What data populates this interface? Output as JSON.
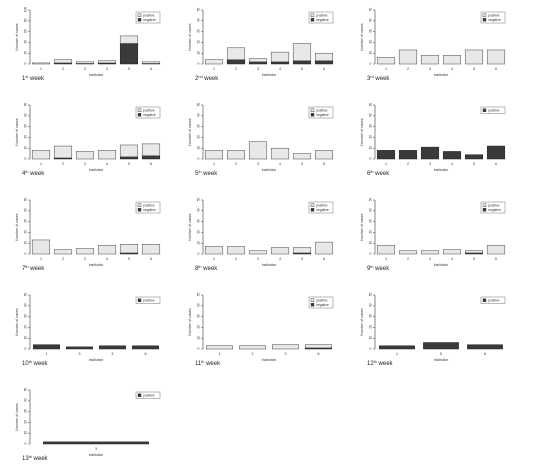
{
  "colors": {
    "positive": "#e8e8e8",
    "negative": "#3a3a3a",
    "axis": "#555555",
    "text": "#333333"
  },
  "chart_data": [
    {
      "type": "bar",
      "stacked": true,
      "panel_label": {
        "ordinal": "1",
        "suffix": "st",
        "word": "week"
      },
      "categories": [
        "1",
        "2",
        "3",
        "4",
        "5",
        "6"
      ],
      "ylabel": "Number of cases",
      "xlabel": "Institution",
      "ylim": [
        0,
        100
      ],
      "yticks": [
        "0",
        "20",
        "40",
        "60",
        "80",
        "100"
      ],
      "series": [
        {
          "name": "positive",
          "values": [
            2,
            6,
            3,
            4,
            14,
            3
          ]
        },
        {
          "name": "negative",
          "values": [
            0,
            2,
            1,
            2,
            38,
            1
          ]
        }
      ],
      "legend": [
        "positive",
        "negative"
      ],
      "legend_position": "top-right"
    },
    {
      "type": "bar",
      "stacked": true,
      "panel_label": {
        "ordinal": "2",
        "suffix": "nd",
        "word": "week"
      },
      "categories": [
        "1",
        "2",
        "3",
        "4",
        "5",
        "6"
      ],
      "ylabel": "Number of cases",
      "xlabel": "Institution",
      "ylim": [
        0,
        50
      ],
      "yticks": [
        "0",
        "10",
        "20",
        "30",
        "40",
        "50"
      ],
      "series": [
        {
          "name": "positive",
          "values": [
            4,
            11,
            3,
            9,
            16,
            7
          ]
        },
        {
          "name": "negative",
          "values": [
            0,
            4,
            2,
            2,
            3,
            3
          ]
        }
      ],
      "legend": [
        "positive",
        "negative"
      ],
      "legend_position": "top-right"
    },
    {
      "type": "bar",
      "stacked": true,
      "panel_label": {
        "ordinal": "3",
        "suffix": "rd",
        "word": "week"
      },
      "categories": [
        "1",
        "2",
        "3",
        "4",
        "5",
        "6"
      ],
      "ylabel": "Number of cases",
      "xlabel": "Institution",
      "ylim": [
        0,
        50
      ],
      "yticks": [
        "0",
        "10",
        "20",
        "30",
        "40",
        "50"
      ],
      "series": [
        {
          "name": "positive",
          "values": [
            6,
            13,
            8,
            8,
            13,
            13
          ]
        },
        {
          "name": "negative",
          "values": [
            0,
            0,
            0,
            0,
            0,
            0
          ]
        }
      ],
      "legend": [
        "positive",
        "negative"
      ],
      "legend_position": "top-right"
    },
    {
      "type": "bar",
      "stacked": true,
      "panel_label": {
        "ordinal": "4",
        "suffix": "th",
        "word": "week"
      },
      "categories": [
        "1",
        "2",
        "3",
        "4",
        "5",
        "6"
      ],
      "ylabel": "Number of cases",
      "xlabel": "Institution",
      "ylim": [
        0,
        50
      ],
      "yticks": [
        "0",
        "10",
        "20",
        "30",
        "40",
        "50"
      ],
      "series": [
        {
          "name": "positive",
          "values": [
            8,
            11,
            7,
            8,
            11,
            11
          ]
        },
        {
          "name": "negative",
          "values": [
            0,
            1,
            0,
            0,
            2,
            3
          ]
        }
      ],
      "legend": [
        "positive",
        "negative"
      ],
      "legend_position": "top-right"
    },
    {
      "type": "bar",
      "stacked": true,
      "panel_label": {
        "ordinal": "5",
        "suffix": "th",
        "word": "week"
      },
      "categories": [
        "1",
        "2",
        "3",
        "4",
        "5",
        "6"
      ],
      "ylabel": "Number of cases",
      "xlabel": "Institution",
      "ylim": [
        0,
        50
      ],
      "yticks": [
        "0",
        "10",
        "20",
        "30",
        "40",
        "50"
      ],
      "series": [
        {
          "name": "positive",
          "values": [
            8,
            8,
            16,
            10,
            5,
            8
          ]
        },
        {
          "name": "negative",
          "values": [
            0,
            0,
            0,
            0,
            0,
            0
          ]
        }
      ],
      "legend": [
        "positive",
        "negative"
      ],
      "legend_position": "top-right"
    },
    {
      "type": "bar",
      "stacked": true,
      "panel_label": {
        "ordinal": "6",
        "suffix": "th",
        "word": "week"
      },
      "categories": [
        "1",
        "2",
        "3",
        "4",
        "5",
        "6"
      ],
      "ylabel": "Number of cases",
      "xlabel": "Institution",
      "ylim": [
        0,
        50
      ],
      "yticks": [
        "0",
        "10",
        "20",
        "30",
        "40",
        "50"
      ],
      "series": [
        {
          "name": "positive",
          "values": [
            0,
            0,
            0,
            0,
            0,
            0
          ]
        },
        {
          "name": "negative",
          "values": [
            8,
            8,
            11,
            7,
            4,
            12
          ]
        }
      ],
      "legend": [
        "positive"
      ],
      "legend_swatch": "negative",
      "legend_position": "top-right"
    },
    {
      "type": "bar",
      "stacked": true,
      "panel_label": {
        "ordinal": "7",
        "suffix": "th",
        "word": "week"
      },
      "categories": [
        "1",
        "2",
        "3",
        "4",
        "5",
        "6"
      ],
      "ylabel": "Number of cases",
      "xlabel": "Institution",
      "ylim": [
        0,
        50
      ],
      "yticks": [
        "0",
        "10",
        "20",
        "30",
        "40",
        "50"
      ],
      "series": [
        {
          "name": "positive",
          "values": [
            13,
            4,
            5,
            8,
            8,
            9
          ]
        },
        {
          "name": "negative",
          "values": [
            0,
            0,
            0,
            0,
            1,
            0
          ]
        }
      ],
      "legend": [
        "positive",
        "negative"
      ],
      "legend_position": "top-right"
    },
    {
      "type": "bar",
      "stacked": true,
      "panel_label": {
        "ordinal": "8",
        "suffix": "th",
        "word": "week"
      },
      "categories": [
        "1",
        "2",
        "3",
        "4",
        "5",
        "6"
      ],
      "ylabel": "Number of cases",
      "xlabel": "Institution",
      "ylim": [
        0,
        50
      ],
      "yticks": [
        "0",
        "10",
        "20",
        "30",
        "40",
        "50"
      ],
      "series": [
        {
          "name": "positive",
          "values": [
            7,
            7,
            3,
            6,
            5,
            11
          ]
        },
        {
          "name": "negative",
          "values": [
            0,
            0,
            0,
            0,
            1,
            0
          ]
        }
      ],
      "legend": [
        "positive",
        "negative"
      ],
      "legend_position": "top-right"
    },
    {
      "type": "bar",
      "stacked": true,
      "panel_label": {
        "ordinal": "9",
        "suffix": "th",
        "word": "week"
      },
      "categories": [
        "1",
        "2",
        "3",
        "4",
        "5",
        "6"
      ],
      "ylabel": "Number of cases",
      "xlabel": "Institution",
      "ylim": [
        0,
        50
      ],
      "yticks": [
        "0",
        "10",
        "20",
        "30",
        "40",
        "50"
      ],
      "series": [
        {
          "name": "positive",
          "values": [
            8,
            3,
            3,
            4,
            2,
            8
          ]
        },
        {
          "name": "negative",
          "values": [
            0,
            0,
            0,
            0,
            1,
            0
          ]
        }
      ],
      "legend": [
        "positive",
        "negative"
      ],
      "legend_position": "top-right"
    },
    {
      "type": "bar",
      "stacked": true,
      "panel_label": {
        "ordinal": "10",
        "suffix": "th",
        "word": "week"
      },
      "categories": [
        "1",
        "3",
        "5",
        "6"
      ],
      "ylabel": "Number of cases",
      "xlabel": "Institution",
      "ylim": [
        0,
        50
      ],
      "yticks": [
        "0",
        "10",
        "20",
        "30",
        "40",
        "50"
      ],
      "series": [
        {
          "name": "positive",
          "values": [
            0,
            0,
            0,
            0
          ]
        },
        {
          "name": "negative",
          "values": [
            4,
            2,
            3,
            3
          ]
        }
      ],
      "legend": [
        "positive"
      ],
      "legend_swatch": "negative",
      "legend_position": "top-right"
    },
    {
      "type": "bar",
      "stacked": true,
      "panel_label": {
        "ordinal": "11",
        "suffix": "th",
        "word": "week"
      },
      "categories": [
        "1",
        "2",
        "3",
        "6"
      ],
      "ylabel": "Number of cases",
      "xlabel": "Institution",
      "ylim": [
        0,
        50
      ],
      "yticks": [
        "0",
        "10",
        "20",
        "30",
        "40",
        "50"
      ],
      "series": [
        {
          "name": "positive",
          "values": [
            3,
            3,
            4,
            3
          ]
        },
        {
          "name": "negative",
          "values": [
            0,
            0,
            0,
            1
          ]
        }
      ],
      "legend": [
        "positive",
        "negative"
      ],
      "legend_position": "top-right"
    },
    {
      "type": "bar",
      "stacked": true,
      "panel_label": {
        "ordinal": "12",
        "suffix": "th",
        "word": "week"
      },
      "categories": [
        "1",
        "5",
        "6"
      ],
      "ylabel": "Number of cases",
      "xlabel": "Institution",
      "ylim": [
        0,
        50
      ],
      "yticks": [
        "0",
        "10",
        "20",
        "30",
        "40",
        "50"
      ],
      "series": [
        {
          "name": "positive",
          "values": [
            0,
            0,
            0
          ]
        },
        {
          "name": "negative",
          "values": [
            3,
            6,
            4
          ]
        }
      ],
      "legend": [
        "positive"
      ],
      "legend_swatch": "negative",
      "legend_position": "top-right"
    },
    {
      "type": "bar",
      "stacked": true,
      "panel_label": {
        "ordinal": "13",
        "suffix": "th",
        "word": "week"
      },
      "categories": [
        "3"
      ],
      "ylabel": "Number of cases",
      "xlabel": "Institution",
      "ylim": [
        0,
        50
      ],
      "yticks": [
        "0",
        "10",
        "20",
        "30",
        "40",
        "50"
      ],
      "series": [
        {
          "name": "positive",
          "values": [
            0
          ]
        },
        {
          "name": "negative",
          "values": [
            2
          ]
        }
      ],
      "legend": [
        "positive"
      ],
      "legend_swatch": "negative",
      "legend_position": "top-right"
    }
  ]
}
